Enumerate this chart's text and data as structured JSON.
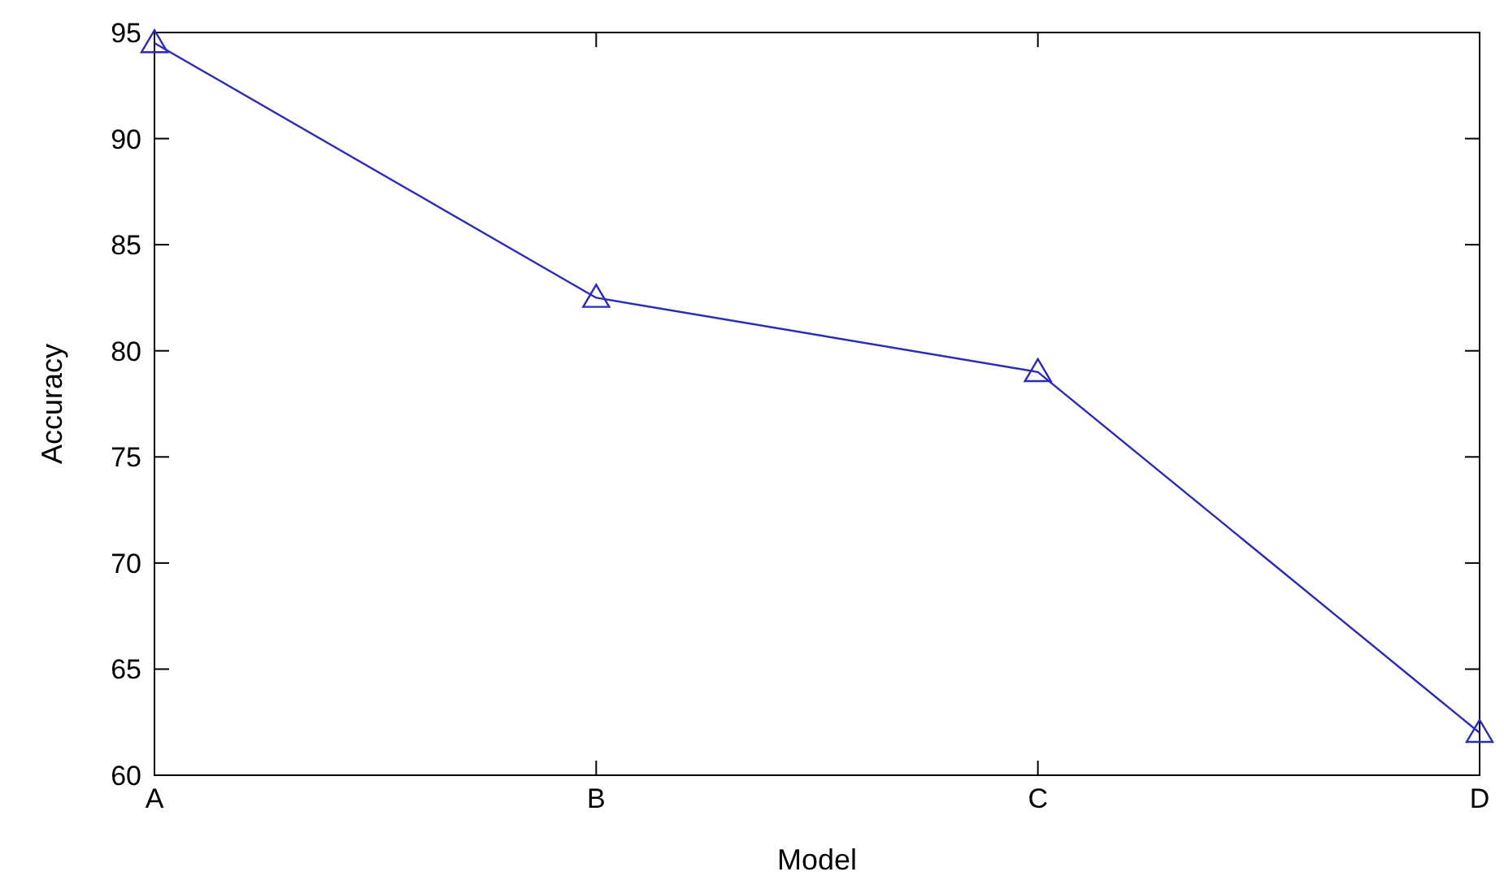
{
  "chart_data": {
    "type": "line",
    "xlabel": "Model",
    "ylabel": "Accuracy",
    "categories": [
      "A",
      "B",
      "C",
      "D"
    ],
    "series": [
      {
        "color": "#2b2bb8",
        "values": [
          94.5,
          82.5,
          79,
          62
        ]
      }
    ],
    "ylim": [
      60,
      95
    ],
    "yticks": [
      60,
      65,
      70,
      75,
      80,
      85,
      90,
      95
    ],
    "marker": "triangle",
    "line_style": "solid"
  }
}
